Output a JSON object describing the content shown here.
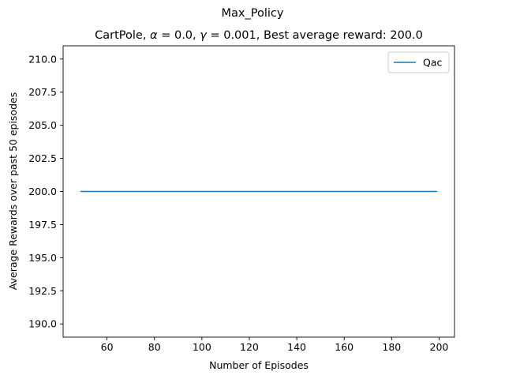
{
  "figure": {
    "suptitle": "Max_Policy"
  },
  "chart_data": {
    "type": "line",
    "title_parts": {
      "prefix": "CartPole, ",
      "alpha_symbol": "α",
      "alpha_text": " = 0.0, ",
      "gamma_symbol": "γ",
      "gamma_text": " = 0.001,  Best average reward: 200.0"
    },
    "xlabel": "Number of Episodes",
    "ylabel": "Average Rewards over past 50 episodes",
    "xlim": [
      41.5,
      206.5
    ],
    "ylim": [
      189.0,
      211.0
    ],
    "xticks": [
      60,
      80,
      100,
      120,
      140,
      160,
      180,
      200
    ],
    "xtick_labels": [
      "60",
      "80",
      "100",
      "120",
      "140",
      "160",
      "180",
      "200"
    ],
    "yticks": [
      190.0,
      192.5,
      195.0,
      197.5,
      200.0,
      202.5,
      205.0,
      207.5,
      210.0
    ],
    "ytick_labels": [
      "190.0",
      "192.5",
      "195.0",
      "197.5",
      "200.0",
      "202.5",
      "205.0",
      "207.5",
      "210.0"
    ],
    "grid": false,
    "legend_position": "top-right",
    "series": [
      {
        "name": "Qac",
        "color": "#1f77b4",
        "x_start": 49,
        "x_end": 199,
        "y_constant": 200.0
      }
    ]
  }
}
